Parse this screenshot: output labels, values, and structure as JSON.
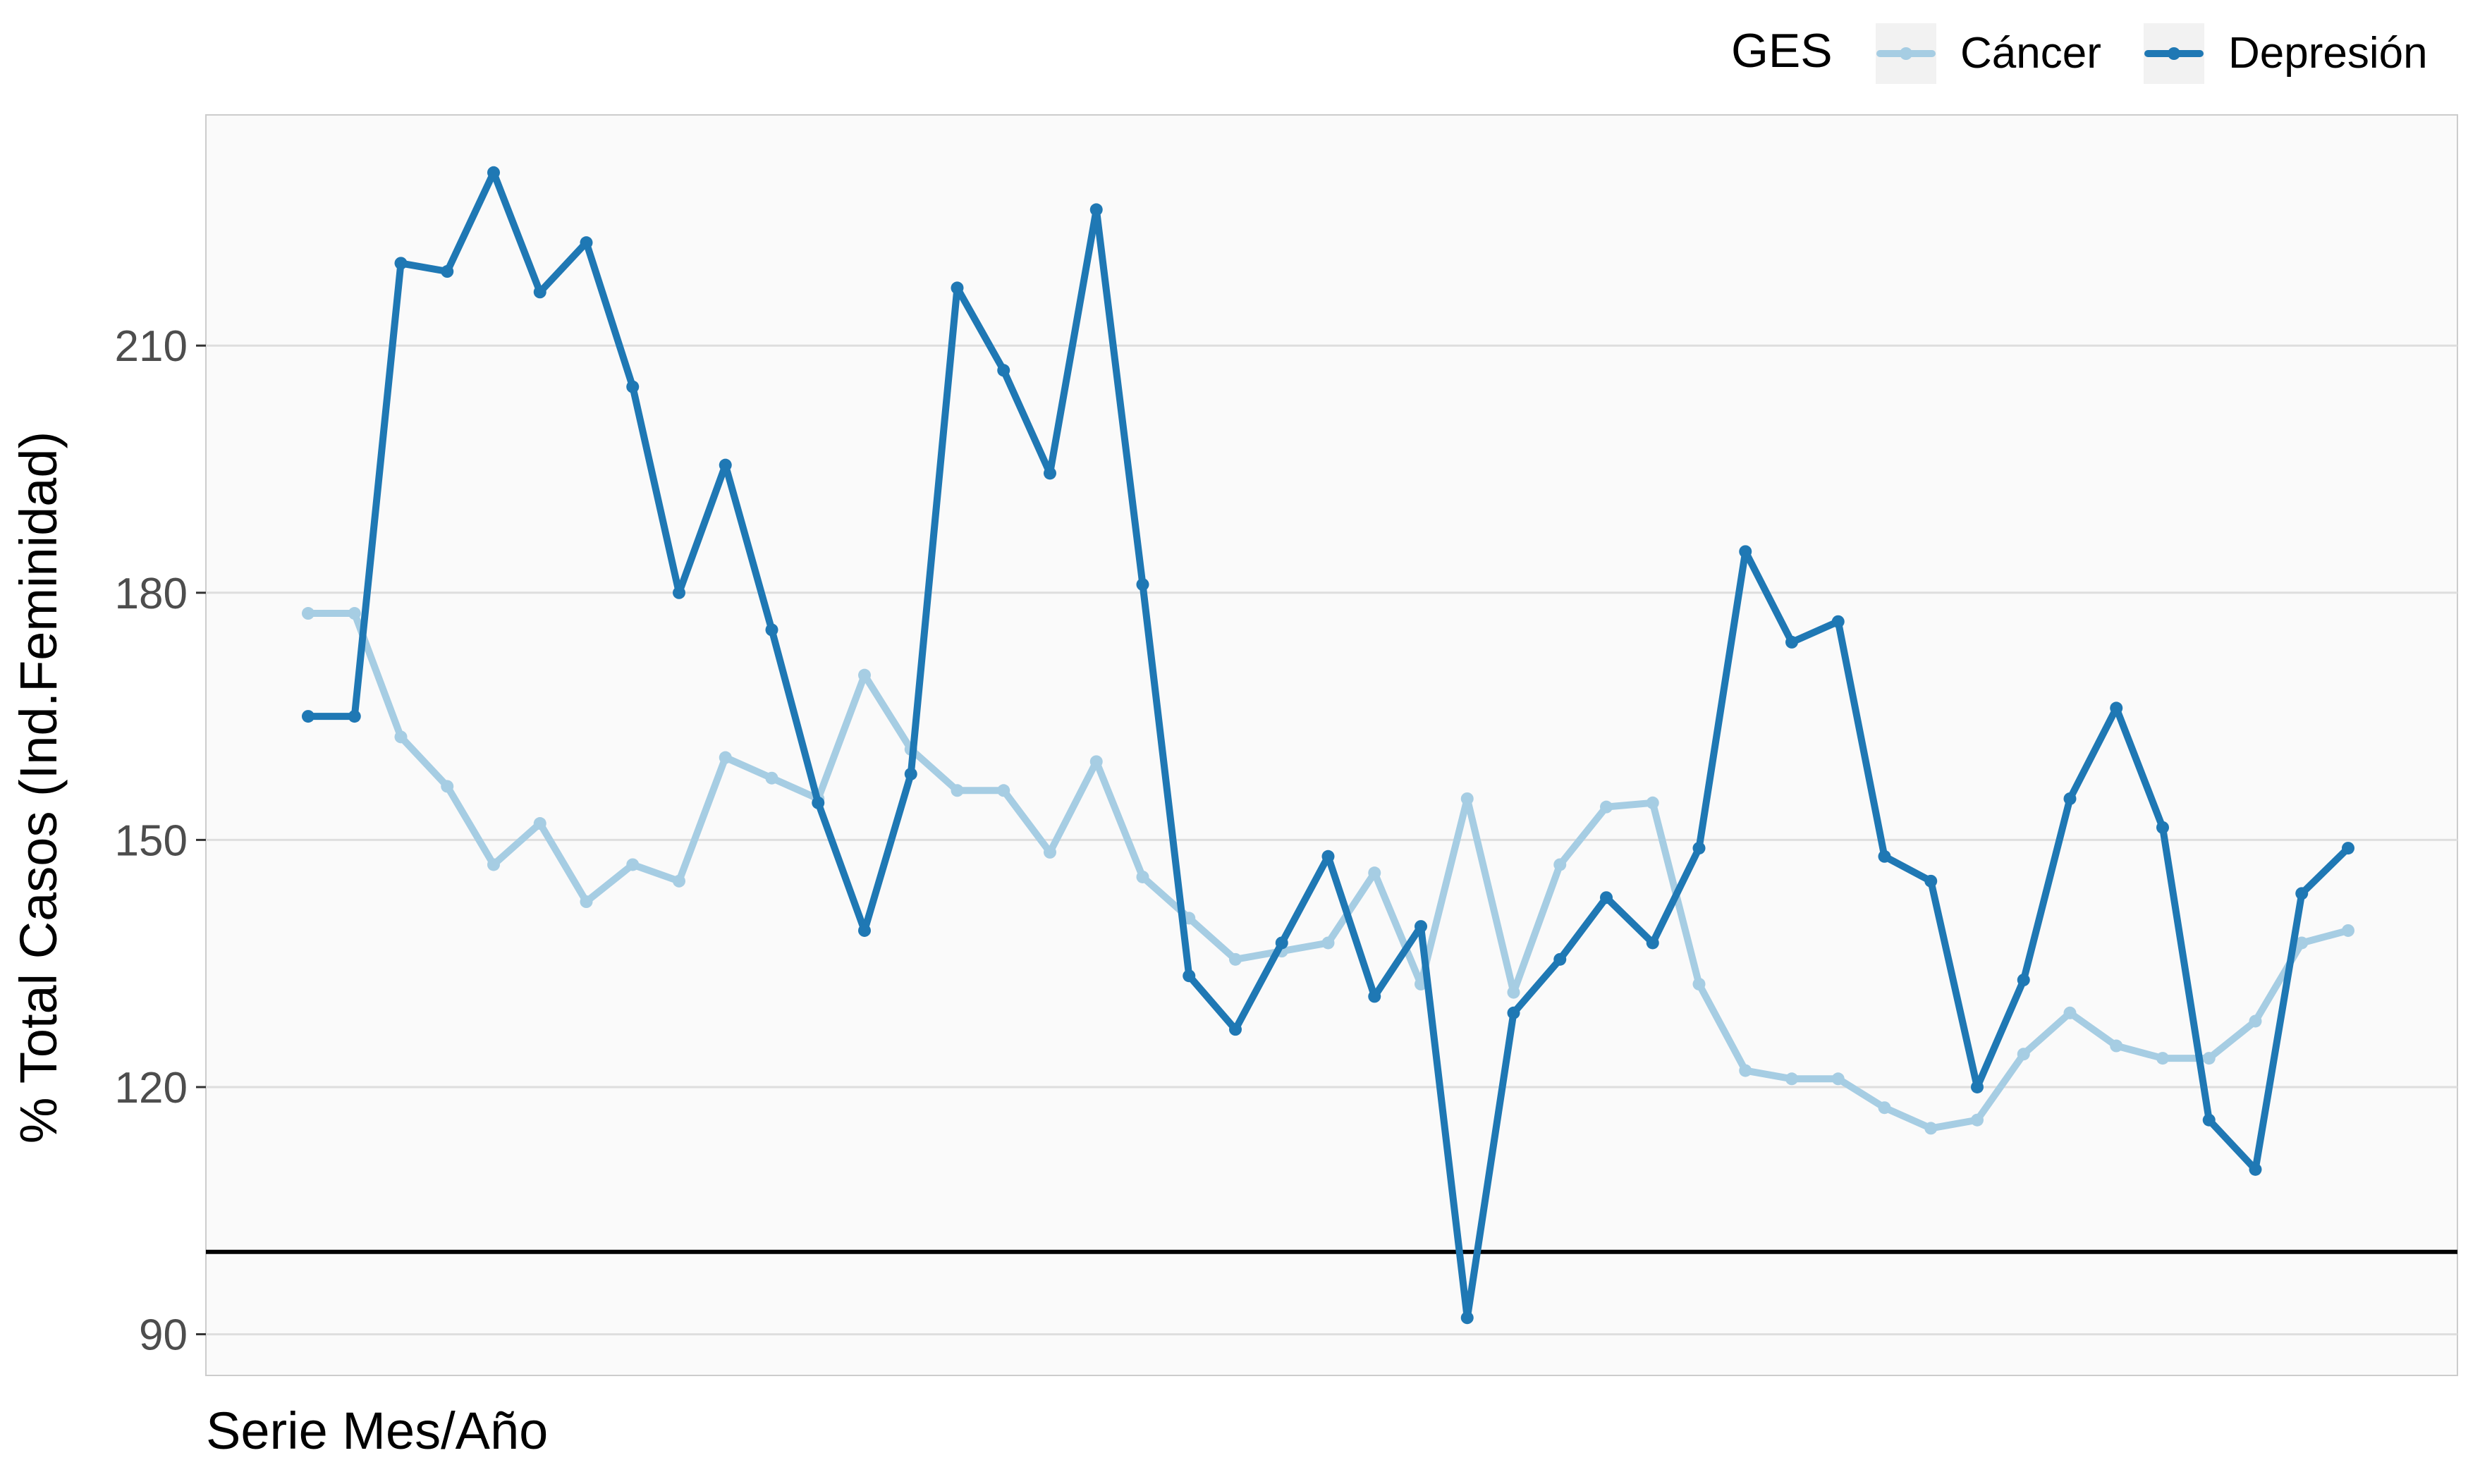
{
  "chart_data": {
    "type": "line",
    "title": "",
    "xlabel": "Serie Mes/Año",
    "ylabel": "% Total Casos (Ind.Feminidad)",
    "ylim": [
      85,
      238
    ],
    "yticks": [
      90,
      120,
      150,
      180,
      210
    ],
    "grid": "horizontal",
    "reference_line": 100,
    "legend": {
      "title": "GES",
      "position": "top-right"
    },
    "colors": {
      "panel_bg": "#fafafa",
      "grid": "#dedede",
      "reference": "#000000"
    },
    "series": [
      {
        "name": "Cáncer",
        "color": "#a6cde3",
        "values": [
          177.5,
          177.5,
          162.5,
          156.5,
          147.0,
          152.0,
          142.5,
          147.0,
          145.0,
          160.0,
          157.5,
          155.0,
          170.0,
          161.0,
          156.0,
          156.0,
          148.5,
          159.5,
          145.5,
          140.5,
          135.5,
          136.5,
          137.5,
          146.0,
          132.5,
          155.0,
          131.5,
          147.0,
          154.0,
          154.5,
          132.5,
          122.0,
          121.0,
          121.0,
          117.5,
          115.0,
          116.0,
          124.0,
          129.0,
          125.0,
          123.5,
          123.5,
          128.0,
          137.5,
          139.0
        ]
      },
      {
        "name": "Depresión",
        "color": "#1f78b4",
        "values": [
          165.0,
          165.0,
          220.0,
          219.0,
          231.0,
          216.5,
          222.5,
          205.0,
          180.0,
          195.5,
          175.5,
          154.5,
          139.0,
          158.0,
          217.0,
          207.0,
          194.5,
          226.5,
          181.0,
          133.5,
          127.0,
          137.5,
          148.0,
          131.0,
          139.5,
          92.0,
          129.0,
          135.5,
          143.0,
          137.5,
          149.0,
          185.0,
          174.0,
          176.5,
          148.0,
          145.0,
          120.0,
          133.0,
          155.0,
          166.0,
          151.5,
          116.0,
          110.0,
          143.5,
          149.0
        ]
      }
    ]
  }
}
